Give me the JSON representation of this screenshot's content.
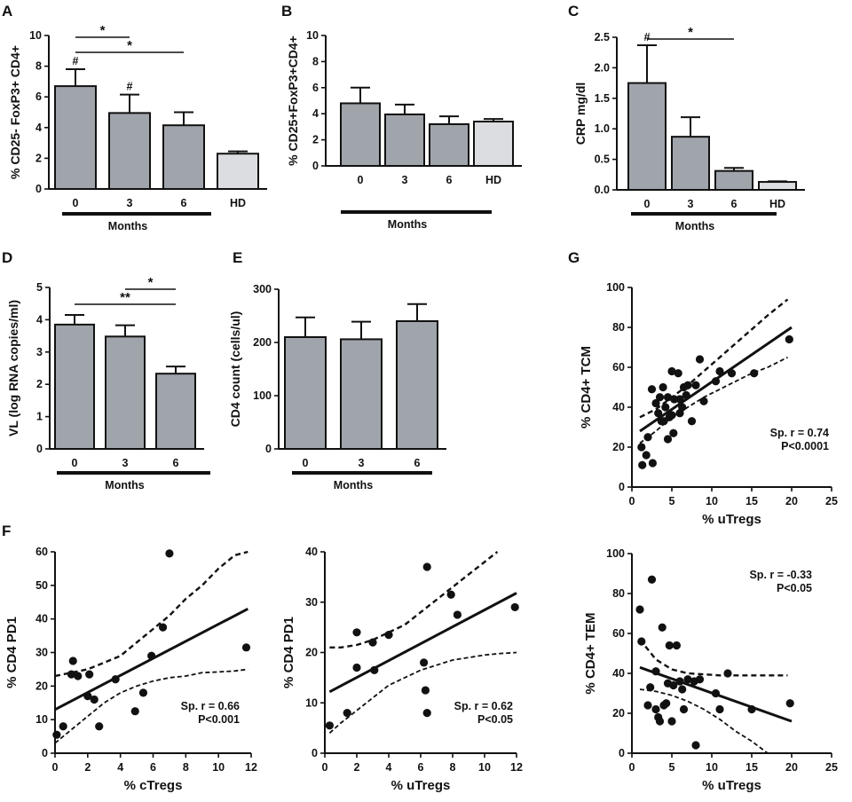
{
  "figure": {
    "panel_labels": [
      "A",
      "B",
      "C",
      "D",
      "E",
      "F",
      "G"
    ]
  },
  "colors": {
    "bar_patient": "#a0a4ab",
    "bar_hd": "#dcdde0",
    "ink": "#111111"
  },
  "chart_data": [
    {
      "id": "A",
      "type": "bar",
      "ylabel": "% CD25- FoxP3+ CD4+",
      "categories": [
        "0",
        "3",
        "6",
        "HD"
      ],
      "values": [
        6.7,
        4.95,
        4.15,
        2.3
      ],
      "errors": [
        1.1,
        1.2,
        0.85,
        0.15
      ],
      "ylim": [
        0,
        10
      ],
      "yticks": [
        "0",
        "2",
        "4",
        "6",
        "8",
        "10"
      ],
      "group_label": "Months",
      "hash_marks": [
        "#",
        "#",
        "",
        ""
      ],
      "significance": [
        {
          "from": 0,
          "to": 1,
          "label": "*"
        },
        {
          "from": 0,
          "to": 2,
          "label": "*"
        }
      ]
    },
    {
      "id": "B",
      "type": "bar",
      "ylabel": "% CD25+FoxP3+CD4+",
      "categories": [
        "0",
        "3",
        "6",
        "HD"
      ],
      "values": [
        4.8,
        3.95,
        3.2,
        3.4
      ],
      "errors": [
        1.2,
        0.75,
        0.6,
        0.2
      ],
      "ylim": [
        0,
        10
      ],
      "yticks": [
        "0",
        "2",
        "4",
        "6",
        "8",
        "10"
      ],
      "group_label": "Months",
      "hash_marks": [
        "",
        "",
        "",
        ""
      ],
      "significance": []
    },
    {
      "id": "C",
      "type": "bar",
      "ylabel": "CRP mg/dl",
      "categories": [
        "0",
        "3",
        "6",
        "HD"
      ],
      "values": [
        1.75,
        0.87,
        0.31,
        0.13
      ],
      "errors": [
        0.62,
        0.32,
        0.05,
        0.01
      ],
      "ylim": [
        0,
        2.5
      ],
      "yticks": [
        "0.0",
        "0.5",
        "1.0",
        "1.5",
        "2.0",
        "2.5"
      ],
      "group_label": "Months",
      "hash_marks": [
        "#",
        "",
        "",
        ""
      ],
      "significance": [
        {
          "from": 0,
          "to": 2,
          "label": "*"
        }
      ]
    },
    {
      "id": "D",
      "type": "bar",
      "ylabel": "VL (log RNA copies/ml)",
      "categories": [
        "0",
        "3",
        "6"
      ],
      "values": [
        3.85,
        3.48,
        2.33
      ],
      "errors": [
        0.3,
        0.35,
        0.22
      ],
      "ylim": [
        0,
        5
      ],
      "yticks": [
        "0",
        "1",
        "2",
        "3",
        "4",
        "5"
      ],
      "group_label": "Months",
      "hash_marks": [
        "",
        "",
        ""
      ],
      "significance": [
        {
          "from": 1,
          "to": 2,
          "label": "*"
        },
        {
          "from": 0,
          "to": 2,
          "label": "**"
        }
      ]
    },
    {
      "id": "E",
      "type": "bar",
      "ylabel": "CD4 count (cells/ul)",
      "categories": [
        "0",
        "3",
        "6"
      ],
      "values": [
        210,
        206,
        240
      ],
      "errors": [
        37,
        33,
        32
      ],
      "ylim": [
        0,
        300
      ],
      "yticks": [
        "0",
        "100",
        "200",
        "300"
      ],
      "group_label": "Months",
      "hash_marks": [
        "",
        "",
        ""
      ],
      "significance": []
    },
    {
      "id": "G",
      "type": "scatter",
      "xlabel": "% uTregs",
      "ylabel": "% CD4+ TCM",
      "xlim": [
        0,
        25
      ],
      "ylim": [
        0,
        100
      ],
      "xticks": [
        "0",
        "5",
        "10",
        "15",
        "20",
        "25"
      ],
      "yticks": [
        "0",
        "20",
        "40",
        "60",
        "80",
        "100"
      ],
      "points": [
        [
          1.2,
          20
        ],
        [
          1.3,
          11
        ],
        [
          1.8,
          16
        ],
        [
          2,
          25
        ],
        [
          2.5,
          49
        ],
        [
          2.6,
          12
        ],
        [
          3,
          42
        ],
        [
          3.3,
          37
        ],
        [
          3.5,
          45
        ],
        [
          3.7,
          33
        ],
        [
          3.9,
          50
        ],
        [
          4,
          33
        ],
        [
          4.2,
          40
        ],
        [
          4.5,
          45
        ],
        [
          4.7,
          35
        ],
        [
          4.5,
          24
        ],
        [
          5,
          58
        ],
        [
          5,
          36
        ],
        [
          5.2,
          27
        ],
        [
          5.3,
          44
        ],
        [
          5.8,
          57
        ],
        [
          6,
          44
        ],
        [
          6,
          37
        ],
        [
          6.3,
          40
        ],
        [
          6.5,
          50
        ],
        [
          6.8,
          46
        ],
        [
          7,
          51
        ],
        [
          7.5,
          33
        ],
        [
          8,
          51
        ],
        [
          8.5,
          64
        ],
        [
          9,
          43
        ],
        [
          10.5,
          53
        ],
        [
          11,
          58
        ],
        [
          12.5,
          57
        ],
        [
          15.3,
          57
        ],
        [
          19.7,
          74
        ]
      ],
      "fit_line": [
        [
          1,
          28
        ],
        [
          20,
          80
        ]
      ],
      "ci_upper": [
        [
          1,
          35
        ],
        [
          3,
          39
        ],
        [
          5,
          45
        ],
        [
          7,
          51
        ],
        [
          9,
          58
        ],
        [
          11,
          65
        ],
        [
          13,
          72
        ],
        [
          15,
          79
        ],
        [
          17,
          86
        ],
        [
          19.5,
          94
        ]
      ],
      "ci_lower": [
        [
          1,
          22
        ],
        [
          3,
          28
        ],
        [
          5,
          35
        ],
        [
          7,
          40
        ],
        [
          9,
          45
        ],
        [
          11,
          49
        ],
        [
          13,
          53
        ],
        [
          15,
          57
        ],
        [
          17,
          60
        ],
        [
          19.5,
          65
        ]
      ],
      "stat": {
        "line1": "Sp. r = 0.74",
        "line2": "P<0.0001"
      }
    },
    {
      "id": "F1",
      "type": "scatter",
      "xlabel": "% cTregs",
      "ylabel": "% CD4 PD1",
      "xlim": [
        0,
        12
      ],
      "ylim": [
        0,
        60
      ],
      "xticks": [
        "0",
        "2",
        "4",
        "6",
        "8",
        "10",
        "12"
      ],
      "yticks": [
        "0",
        "10",
        "20",
        "30",
        "40",
        "50",
        "60"
      ],
      "points": [
        [
          0.1,
          5.5
        ],
        [
          0.5,
          8
        ],
        [
          1,
          23.5
        ],
        [
          1.1,
          27.5
        ],
        [
          1.4,
          23
        ],
        [
          2,
          17
        ],
        [
          2.1,
          23.5
        ],
        [
          2.4,
          16
        ],
        [
          2.7,
          8
        ],
        [
          3.7,
          22
        ],
        [
          4.9,
          12.5
        ],
        [
          5.4,
          18
        ],
        [
          5.9,
          29
        ],
        [
          6.6,
          37.5
        ],
        [
          7,
          59.5
        ],
        [
          11.7,
          31.5
        ]
      ],
      "fit_line": [
        [
          0,
          13
        ],
        [
          11.8,
          43
        ]
      ],
      "ci_upper": [
        [
          0,
          23
        ],
        [
          1,
          24
        ],
        [
          2,
          25
        ],
        [
          3,
          27
        ],
        [
          4,
          29
        ],
        [
          5,
          33
        ],
        [
          6,
          37
        ],
        [
          7,
          41
        ],
        [
          8,
          46
        ],
        [
          9,
          50
        ],
        [
          10,
          55
        ],
        [
          11,
          59
        ],
        [
          11.8,
          60
        ]
      ],
      "ci_lower": [
        [
          0,
          3
        ],
        [
          1,
          7
        ],
        [
          2,
          11
        ],
        [
          3,
          15
        ],
        [
          4,
          18
        ],
        [
          5,
          20
        ],
        [
          6,
          21.5
        ],
        [
          7,
          22.5
        ],
        [
          8,
          23
        ],
        [
          9,
          24
        ],
        [
          10,
          24.2
        ],
        [
          11,
          24.5
        ],
        [
          11.8,
          25
        ]
      ],
      "stat": {
        "line1": "Sp. r = 0.66",
        "line2": "P<0.001"
      }
    },
    {
      "id": "F2",
      "type": "scatter",
      "xlabel": "% uTregs",
      "ylabel": "% CD4 PD1",
      "xlim": [
        0,
        12
      ],
      "ylim": [
        0,
        40
      ],
      "xticks": [
        "0",
        "2",
        "4",
        "6",
        "8",
        "10",
        "12"
      ],
      "yticks": [
        "0",
        "10",
        "20",
        "30",
        "40"
      ],
      "points": [
        [
          0.3,
          5.5
        ],
        [
          1.4,
          8
        ],
        [
          2,
          17
        ],
        [
          2,
          24
        ],
        [
          3,
          22
        ],
        [
          3.1,
          16.5
        ],
        [
          4,
          23.5
        ],
        [
          6.2,
          18
        ],
        [
          6.3,
          12.5
        ],
        [
          6.4,
          8
        ],
        [
          6.4,
          37
        ],
        [
          7.9,
          31.5
        ],
        [
          8.3,
          27.5
        ],
        [
          11.9,
          29
        ]
      ],
      "fit_line": [
        [
          0.3,
          12.2
        ],
        [
          12,
          31.8
        ]
      ],
      "ci_upper": [
        [
          0.3,
          21
        ],
        [
          1,
          21
        ],
        [
          2,
          21.5
        ],
        [
          3,
          22.5
        ],
        [
          4,
          24
        ],
        [
          5,
          25.5
        ],
        [
          6,
          28
        ],
        [
          7,
          30.5
        ],
        [
          8,
          33
        ],
        [
          9,
          35.5
        ],
        [
          10,
          38
        ],
        [
          10.8,
          40
        ]
      ],
      "ci_lower": [
        [
          0.3,
          4
        ],
        [
          1,
          6
        ],
        [
          2,
          8.5
        ],
        [
          3,
          11
        ],
        [
          4,
          13.5
        ],
        [
          5,
          15
        ],
        [
          6,
          16.5
        ],
        [
          7,
          17.5
        ],
        [
          8,
          18.5
        ],
        [
          9,
          19
        ],
        [
          10,
          19.5
        ],
        [
          11,
          19.8
        ],
        [
          12,
          20
        ]
      ],
      "stat": {
        "line1": "Sp. r = 0.62",
        "line2": "P<0.05"
      }
    },
    {
      "id": "F3",
      "type": "scatter",
      "xlabel": "% uTregs",
      "ylabel": "% CD4+ TEM",
      "xlim": [
        0,
        25
      ],
      "ylim": [
        0,
        100
      ],
      "xticks": [
        "0",
        "5",
        "10",
        "15",
        "20",
        "25"
      ],
      "yticks": [
        "0",
        "20",
        "40",
        "60",
        "80",
        "100"
      ],
      "points": [
        [
          1,
          72
        ],
        [
          1.2,
          56
        ],
        [
          2,
          24
        ],
        [
          2.3,
          33
        ],
        [
          2.5,
          87
        ],
        [
          3,
          41
        ],
        [
          3,
          22
        ],
        [
          3.3,
          18
        ],
        [
          3.5,
          16
        ],
        [
          3.8,
          63
        ],
        [
          4,
          24
        ],
        [
          4.3,
          25
        ],
        [
          4.5,
          35
        ],
        [
          4.7,
          54
        ],
        [
          5,
          16
        ],
        [
          5.2,
          34
        ],
        [
          5.6,
          54
        ],
        [
          6,
          36
        ],
        [
          6.3,
          32
        ],
        [
          6.5,
          22
        ],
        [
          7,
          37
        ],
        [
          7.8,
          36
        ],
        [
          8,
          4
        ],
        [
          8.5,
          37
        ],
        [
          10.5,
          30
        ],
        [
          11,
          22
        ],
        [
          12,
          40
        ],
        [
          15,
          22
        ],
        [
          19.8,
          25
        ]
      ],
      "fit_line": [
        [
          1,
          43
        ],
        [
          20,
          16
        ]
      ],
      "ci_upper": [
        [
          1,
          57
        ],
        [
          3,
          47
        ],
        [
          5,
          42
        ],
        [
          7,
          40
        ],
        [
          9,
          39.5
        ],
        [
          11,
          39
        ],
        [
          13,
          39
        ],
        [
          15,
          39
        ],
        [
          17,
          39
        ],
        [
          19.5,
          39
        ]
      ],
      "ci_lower": [
        [
          1,
          32
        ],
        [
          3,
          31
        ],
        [
          5,
          29
        ],
        [
          7,
          26
        ],
        [
          9,
          22
        ],
        [
          11,
          17
        ],
        [
          13,
          11
        ],
        [
          15,
          6
        ],
        [
          17,
          0
        ]
      ],
      "stat": {
        "line1": "Sp. r = -0.33",
        "line2": "P<0.05"
      }
    }
  ]
}
